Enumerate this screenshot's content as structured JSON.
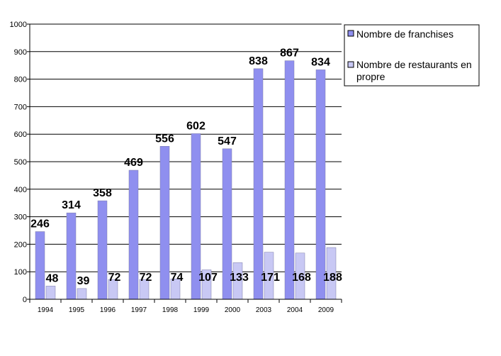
{
  "chart_data": {
    "type": "bar",
    "categories": [
      "1994",
      "1995",
      "1996",
      "1997",
      "1998",
      "1999",
      "2000",
      "2003",
      "2004",
      "2009"
    ],
    "series": [
      {
        "name": "Nombre de franchises",
        "values": [
          246,
          314,
          358,
          469,
          556,
          602,
          547,
          838,
          867,
          834
        ],
        "color": "#8f8fef"
      },
      {
        "name": "Nombre de restaurants en propre",
        "values": [
          48,
          39,
          72,
          72,
          74,
          107,
          133,
          171,
          168,
          188
        ],
        "color": "#c8c8f4"
      }
    ],
    "title": "",
    "xlabel": "",
    "ylabel": "",
    "ylim": [
      0,
      1000
    ],
    "yticks": [
      "0",
      "100",
      "200",
      "300",
      "400",
      "500",
      "600",
      "700",
      "800",
      "900",
      "1000"
    ],
    "grid": true,
    "legend_position": "top-right"
  }
}
